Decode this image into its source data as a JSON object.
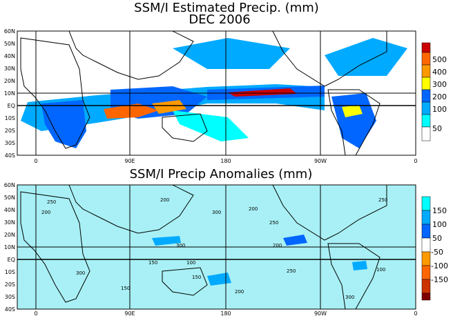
{
  "chart_data": [
    {
      "type": "heatmap",
      "title": "SSM/I Estimated Precip. (mm)",
      "subtitle": "DEC 2006",
      "x_ticks": [
        "0",
        "90E",
        "180",
        "90W",
        "0"
      ],
      "y_ticks": [
        "60N",
        "50N",
        "40N",
        "30N",
        "20N",
        "10N",
        "EQ",
        "10S",
        "20S",
        "30S",
        "40S"
      ],
      "colorbar": {
        "labels": [
          "500",
          "400",
          "300",
          "200",
          "100",
          "50"
        ],
        "colors": [
          "#cc0000",
          "#ff6600",
          "#ff9900",
          "#ffff00",
          "#0066ff",
          "#00aaff",
          "#00ffff",
          "#ffffff"
        ]
      }
    },
    {
      "type": "heatmap",
      "title": "SSM/I Precip Anomalies (mm)",
      "x_ticks": [
        "0",
        "90E",
        "180",
        "90W",
        "0"
      ],
      "y_ticks": [
        "60N",
        "50N",
        "40N",
        "30N",
        "20N",
        "10N",
        "EQ",
        "10S",
        "20S",
        "30S",
        "40S"
      ],
      "contour_labels": [
        "200",
        "250",
        "300",
        "150",
        "100"
      ],
      "colorbar": {
        "labels": [
          "150",
          "100",
          "50",
          "-50",
          "-100",
          "-150"
        ],
        "colors": [
          "#00ffff",
          "#00aaff",
          "#0066ff",
          "#ffffff",
          "#ff9900",
          "#ff6600",
          "#cc3300",
          "#800000"
        ]
      }
    }
  ]
}
